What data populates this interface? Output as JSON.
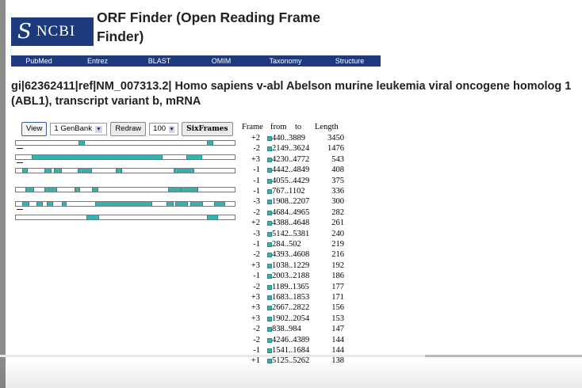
{
  "window": {
    "title": "ORF Finder (Open Reading Frame Finder)"
  },
  "logo": {
    "text": "NCBI",
    "icon": "ncbi-swirl-icon"
  },
  "nav": [
    "PubMed",
    "Entrez",
    "BLAST",
    "OMIM",
    "Taxonomy",
    "Structure"
  ],
  "sequence_heading": "gi|62362411|ref|NM_007313.2| Homo sapiens v-abl Abelson murine leukemia viral oncogene homolog 1 (ABL1), transcript variant b, mRNA",
  "controls": {
    "view_label": "View",
    "format_value": "1 GenBank",
    "redraw_label": "Redraw",
    "count_value": "100",
    "sixframes_label": "SixFrames"
  },
  "colors": {
    "navy": "#1c3a7c",
    "orf": "#34b3b0",
    "progress": "#e0152b"
  },
  "results_header": {
    "frame": "Frame",
    "from": "from",
    "to": "to",
    "length": "Length"
  },
  "results": [
    {
      "frame": "+2",
      "range": "440..3889",
      "length": "3450"
    },
    {
      "frame": "-2",
      "range": "2149..3624",
      "length": "1476"
    },
    {
      "frame": "+3",
      "range": "4230..4772",
      "length": "543"
    },
    {
      "frame": "-1",
      "range": "4442..4849",
      "length": "408"
    },
    {
      "frame": "-1",
      "range": "4055..4429",
      "length": "375"
    },
    {
      "frame": "-1",
      "range": "767..1102",
      "length": "336"
    },
    {
      "frame": "-3",
      "range": "1908..2207",
      "length": "300"
    },
    {
      "frame": "-2",
      "range": "4684..4965",
      "length": "282"
    },
    {
      "frame": "+2",
      "range": "4388..4648",
      "length": "261"
    },
    {
      "frame": "-3",
      "range": "5142..5381",
      "length": "240"
    },
    {
      "frame": "-1",
      "range": "284..502",
      "length": "219"
    },
    {
      "frame": "-2",
      "range": "4393..4608",
      "length": "216"
    },
    {
      "frame": "+3",
      "range": "1038..1229",
      "length": "192"
    },
    {
      "frame": "-1",
      "range": "2003..2188",
      "length": "186"
    },
    {
      "frame": "-2",
      "range": "1189..1365",
      "length": "177"
    },
    {
      "frame": "+3",
      "range": "1683..1853",
      "length": "171"
    },
    {
      "frame": "+3",
      "range": "2667..2822",
      "length": "156"
    },
    {
      "frame": "+3",
      "range": "1902..2054",
      "length": "153"
    },
    {
      "frame": "-2",
      "range": "838..984",
      "length": "147"
    },
    {
      "frame": "-2",
      "range": "4246..4389",
      "length": "144"
    },
    {
      "frame": "-1",
      "range": "1541..1684",
      "length": "144"
    },
    {
      "frame": "+1",
      "range": "5125..5262",
      "length": "138"
    }
  ],
  "video_progress": {
    "played": 0.55,
    "buffered": 0.73
  }
}
